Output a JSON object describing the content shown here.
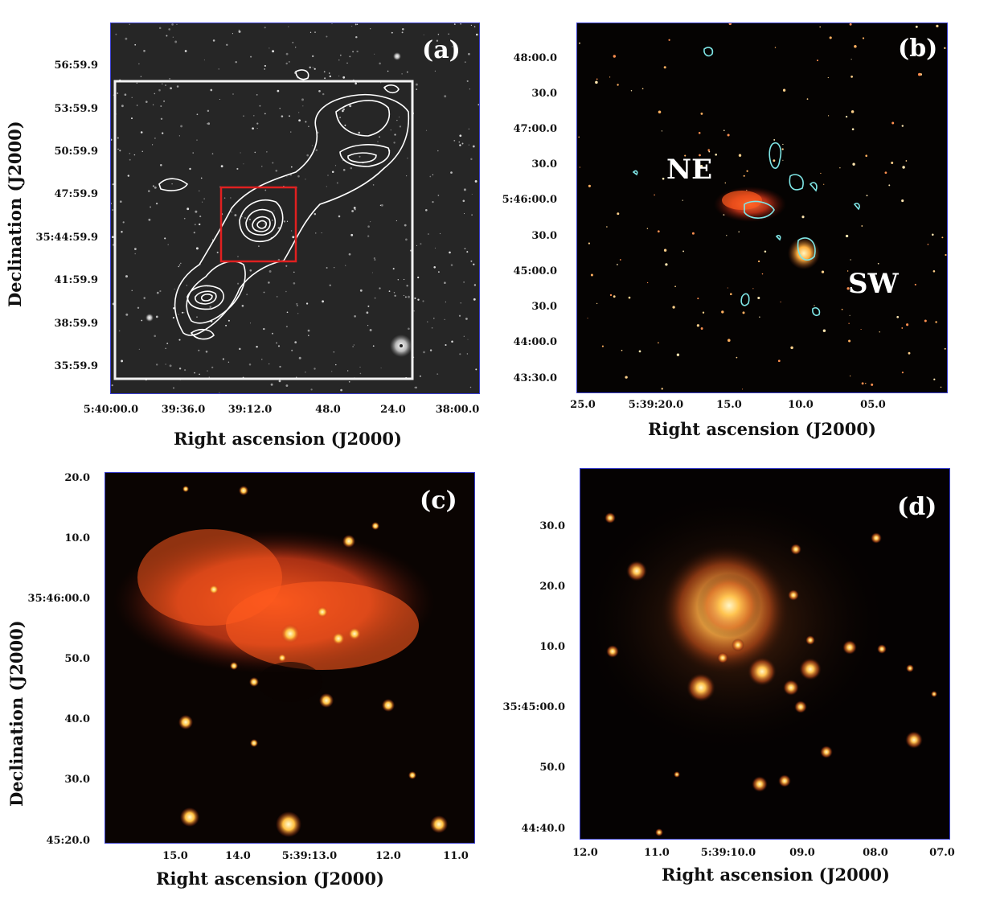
{
  "panels": {
    "a": {
      "label": "(a)",
      "yticks": [
        "56:59.9",
        "53:59.9",
        "50:59.9",
        "47:59.9",
        "35:44:59.9",
        "41:59.9",
        "38:59.9",
        "35:59.9"
      ],
      "xticks": [
        "5:40:00.0",
        "39:36.0",
        "39:12.0",
        "48.0",
        "24.0",
        "38:00.0"
      ],
      "xlabel": "Right ascension (J2000)",
      "ylabel": "Declination (J2000)"
    },
    "b": {
      "label": "(b)",
      "yticks": [
        "48:00.0",
        "30.0",
        "47:00.0",
        "30.0",
        "5:46:00.0",
        "30.0",
        "45:00.0",
        "30.0",
        "44:00.0",
        "43:30.0"
      ],
      "xticks": [
        "25.0",
        "5:39:20.0",
        "15.0",
        "10.0",
        "05.0"
      ],
      "xlabel": "Right ascension (J2000)",
      "regions": [
        "NE",
        "SW"
      ]
    },
    "c": {
      "label": "(c)",
      "yticks": [
        "20.0",
        "10.0",
        "35:46:00.0",
        "50.0",
        "40.0",
        "30.0",
        "45:20.0"
      ],
      "xticks": [
        "15.0",
        "14.0",
        "5:39:13.0",
        "12.0",
        "11.0"
      ],
      "xlabel": "Right ascension (J2000)",
      "ylabel": "Declination (J2000)"
    },
    "d": {
      "label": "(d)",
      "yticks": [
        "30.0",
        "20.0",
        "10.0",
        "35:45:00.0",
        "50.0",
        "44:40.0"
      ],
      "xticks": [
        "12.0",
        "11.0",
        "5:39:10.0",
        "09.0",
        "08.0",
        "07.0"
      ],
      "xlabel": "Right ascension (J2000)"
    }
  },
  "colors": {
    "frame": "#3a3fd0",
    "zoom_box": "#e02020",
    "contours_b": "#7fe6e6",
    "nebula": "#ff5a1e"
  }
}
